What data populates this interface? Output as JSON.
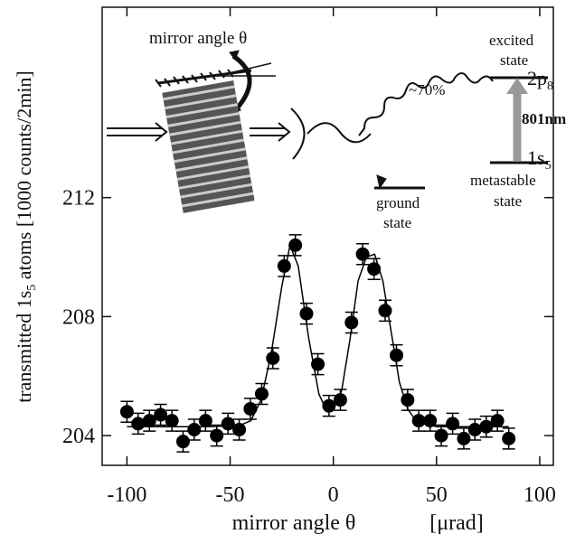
{
  "chart_data": {
    "type": "scatter",
    "x_label": "mirror angle θ",
    "x_unit": "[μrad]",
    "y_label": {
      "main": "transmitted 1s",
      "sub": "5",
      "rest": " atoms [1000 counts/2min]"
    },
    "xlim": [
      -112,
      106.6
    ],
    "ylim": [
      203,
      218.4
    ],
    "xticks": [
      -100,
      -50,
      0,
      50,
      100
    ],
    "yticks": [
      204,
      208,
      212
    ],
    "series": [
      {
        "type": "scatter",
        "color": "#000000",
        "x": [
          -100,
          -94.6,
          -89.1,
          -83.7,
          -78.2,
          -72.8,
          -67.4,
          -61.9,
          -56.5,
          -51.0,
          -45.6,
          -40.2,
          -34.7,
          -29.3,
          -23.8,
          -18.4,
          -13.0,
          -7.5,
          -2.1,
          3.4,
          8.8,
          14.2,
          19.7,
          25.1,
          30.6,
          36.0,
          41.4,
          46.9,
          52.3,
          57.8,
          63.2,
          68.6,
          74.1,
          79.5,
          85.0
        ],
        "values": [
          204.8,
          204.4,
          204.5,
          204.7,
          204.5,
          203.8,
          204.2,
          204.5,
          204.0,
          204.4,
          204.2,
          204.9,
          205.4,
          206.6,
          209.7,
          210.4,
          208.1,
          206.4,
          205.0,
          205.2,
          207.8,
          210.1,
          209.6,
          208.2,
          206.7,
          205.2,
          204.5,
          204.5,
          204.0,
          204.4,
          203.9,
          204.2,
          204.3,
          204.5,
          203.9
        ],
        "errors": [
          0.35,
          0.35,
          0.35,
          0.35,
          0.35,
          0.35,
          0.35,
          0.35,
          0.35,
          0.35,
          0.35,
          0.35,
          0.35,
          0.35,
          0.35,
          0.35,
          0.35,
          0.35,
          0.35,
          0.35,
          0.35,
          0.35,
          0.35,
          0.35,
          0.35,
          0.35,
          0.35,
          0.35,
          0.35,
          0.35,
          0.35,
          0.35,
          0.35,
          0.35,
          0.35
        ]
      },
      {
        "type": "line",
        "color": "#000000",
        "x": [
          -100,
          -60,
          -45,
          -40,
          -35,
          -30,
          -25,
          -21,
          -17,
          -12,
          -7,
          -3,
          0,
          4,
          8,
          12,
          16,
          20,
          24,
          28,
          32,
          36,
          40,
          50,
          85
        ],
        "values": [
          204.3,
          204.3,
          204.35,
          204.5,
          205.2,
          206.8,
          209.0,
          210.4,
          209.7,
          207.3,
          205.4,
          204.8,
          204.9,
          205.5,
          207.2,
          209.2,
          210.0,
          210.1,
          209.2,
          207.5,
          205.8,
          204.9,
          204.5,
          204.3,
          204.3
        ]
      }
    ],
    "annotations": {
      "mirror": "mirror angle θ",
      "excited_1": "excited",
      "excited_2": "state",
      "level_2p": "2p",
      "level_2p_sub": "8",
      "branch": "~70%",
      "wavelength": "801nm",
      "level_1s": "1s",
      "level_1s_sub": "5",
      "ground_1": "ground",
      "ground_2": "state",
      "meta_1": "metastable",
      "meta_2": "state"
    }
  }
}
